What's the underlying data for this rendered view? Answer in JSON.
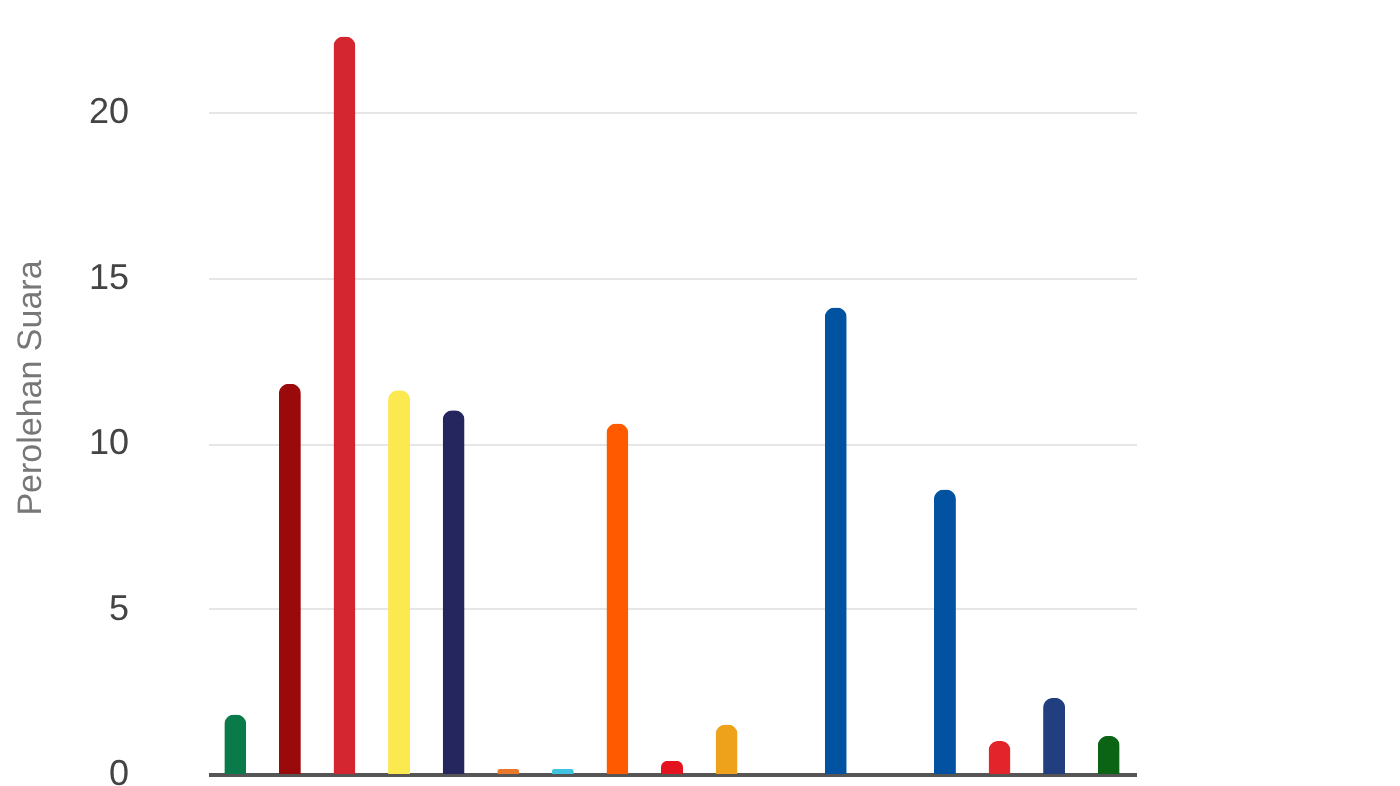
{
  "chart_data": {
    "type": "bar",
    "ylabel": "Perolehan Suara",
    "categories": [
      null,
      null,
      null,
      null,
      null,
      null,
      null,
      null,
      null,
      null,
      null,
      null,
      null,
      null,
      null,
      null,
      null
    ],
    "values": [
      1.8,
      11.8,
      22.3,
      11.6,
      11.0,
      0.15,
      0.15,
      10.6,
      0.4,
      1.5,
      0,
      14.1,
      0,
      8.6,
      1.0,
      2.3,
      1.15
    ],
    "colors": [
      "#0b7a4b",
      "#9b0a0a",
      "#d32630",
      "#fbe94f",
      "#25265e",
      "#e8792b",
      "#3ec3e0",
      "#ff5a00",
      "#e3141f",
      "#eea21b",
      "#888888",
      "#0152a0",
      "#888888",
      "#0152a0",
      "#e3242b",
      "#213f7e",
      "#0a6414"
    ],
    "ylim": [
      0,
      23.4
    ],
    "yticks": [
      0,
      5,
      10,
      15,
      20
    ],
    "grid": "y",
    "tick_labels": "y"
  }
}
